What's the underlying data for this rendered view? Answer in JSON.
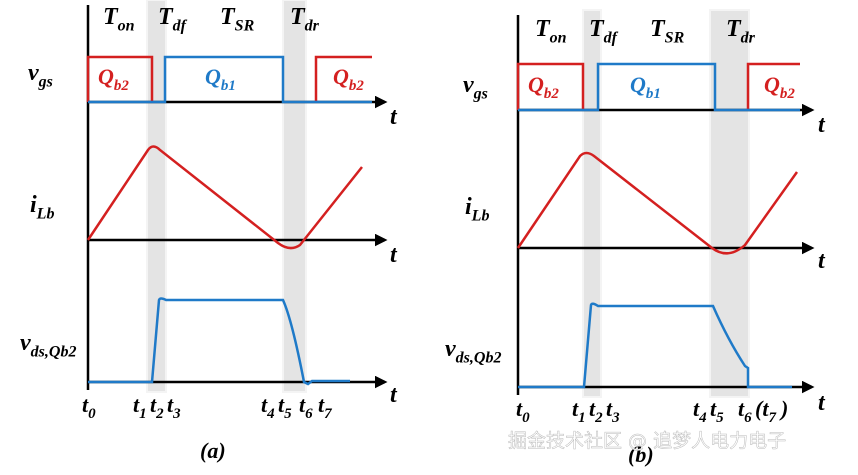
{
  "panels": [
    {
      "caption": "(a)",
      "windows": [
        {
          "main": "T",
          "sub": "on"
        },
        {
          "main": "T",
          "sub": "df"
        },
        {
          "main": "T",
          "sub": "SR"
        },
        {
          "main": "T",
          "sub": "dr"
        }
      ],
      "signals": [
        {
          "main": "v",
          "sub": "gs"
        },
        {
          "main": "i",
          "sub": "Lb"
        },
        {
          "main": "v",
          "sub": "ds,Qb2"
        }
      ],
      "gates": [
        {
          "main": "Q",
          "sub": "b2"
        },
        {
          "main": "Q",
          "sub": "b1"
        },
        {
          "main": "Q",
          "sub": "b2"
        }
      ],
      "axis_labels": [
        "t",
        "t",
        "t"
      ],
      "time_marks": [
        {
          "main": "t",
          "sub": "0"
        },
        {
          "main": "t",
          "sub": "1"
        },
        {
          "main": "t",
          "sub": "2"
        },
        {
          "main": "t",
          "sub": "3"
        },
        {
          "main": "t",
          "sub": "4"
        },
        {
          "main": "t",
          "sub": "5"
        },
        {
          "main": "t",
          "sub": "6"
        },
        {
          "main": "t",
          "sub": "7"
        }
      ]
    },
    {
      "caption": "(b)",
      "windows": [
        {
          "main": "T",
          "sub": "on"
        },
        {
          "main": "T",
          "sub": "df"
        },
        {
          "main": "T",
          "sub": "SR"
        },
        {
          "main": "T",
          "sub": "dr"
        }
      ],
      "signals": [
        {
          "main": "v",
          "sub": "gs"
        },
        {
          "main": "i",
          "sub": "Lb"
        },
        {
          "main": "v",
          "sub": "ds,Qb2"
        }
      ],
      "gates": [
        {
          "main": "Q",
          "sub": "b2"
        },
        {
          "main": "Q",
          "sub": "b1"
        },
        {
          "main": "Q",
          "sub": "b2"
        }
      ],
      "axis_labels": [
        "t",
        "t",
        "t"
      ],
      "time_marks": [
        {
          "main": "t",
          "sub": "0"
        },
        {
          "main": "t",
          "sub": "1"
        },
        {
          "main": "t",
          "sub": "2"
        },
        {
          "main": "t",
          "sub": "3"
        },
        {
          "main": "t",
          "sub": "4"
        },
        {
          "main": "t",
          "sub": "5"
        },
        {
          "main": "t",
          "sub": "6"
        },
        {
          "main": "(t",
          "sub": "7"
        },
        {
          "main": ")"
        }
      ]
    }
  ],
  "watermark": "掘金技术社区 @ 追梦人电力电子"
}
